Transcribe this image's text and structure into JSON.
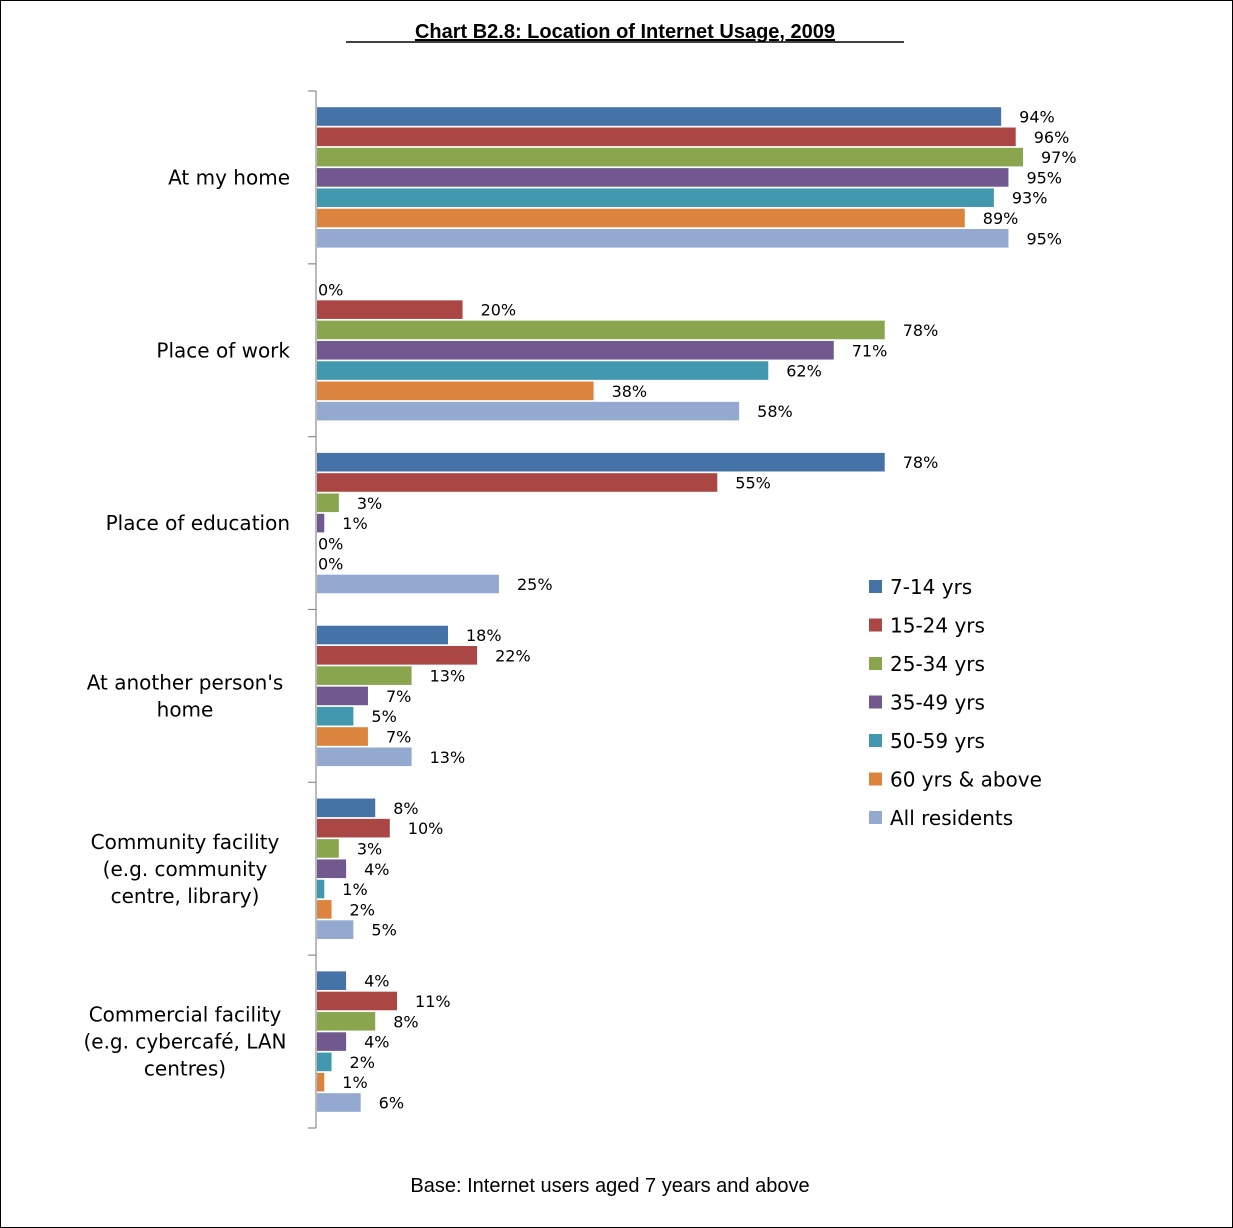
{
  "chart_data": {
    "type": "bar",
    "orientation": "horizontal",
    "title": "Chart B2.8: Location of Internet Usage, 2009",
    "note": "Base: Internet users aged 7 years and above",
    "categories": [
      [
        "At my home"
      ],
      [
        "Place of work"
      ],
      [
        "Place of education"
      ],
      [
        "At another person's",
        "home"
      ],
      [
        "Community facility",
        "(e.g. community",
        "centre, library)"
      ],
      [
        "Commercial facility",
        "(e.g. cybercafé, LAN",
        "centres)"
      ]
    ],
    "series": [
      {
        "name": "7-14 yrs",
        "color": "#4572A7",
        "values": [
          94,
          0,
          78,
          18,
          8,
          4
        ]
      },
      {
        "name": "15-24 yrs",
        "color": "#AA4643",
        "values": [
          96,
          20,
          55,
          22,
          10,
          11
        ]
      },
      {
        "name": "25-34 yrs",
        "color": "#89A54E",
        "values": [
          97,
          78,
          3,
          13,
          3,
          8
        ]
      },
      {
        "name": "35-49 yrs",
        "color": "#71588F",
        "values": [
          95,
          71,
          1,
          7,
          4,
          4
        ]
      },
      {
        "name": "50-59 yrs",
        "color": "#4198AF",
        "values": [
          93,
          62,
          0,
          5,
          1,
          2
        ]
      },
      {
        "name": "60 yrs & above",
        "color": "#DB843D",
        "values": [
          89,
          38,
          0,
          7,
          2,
          1
        ]
      },
      {
        "name": "All residents",
        "color": "#93A9CF",
        "values": [
          95,
          58,
          25,
          13,
          5,
          6
        ]
      }
    ],
    "value_suffix": "%",
    "xlim": [
      0,
      100
    ],
    "grid": false,
    "legend_position": "right"
  }
}
